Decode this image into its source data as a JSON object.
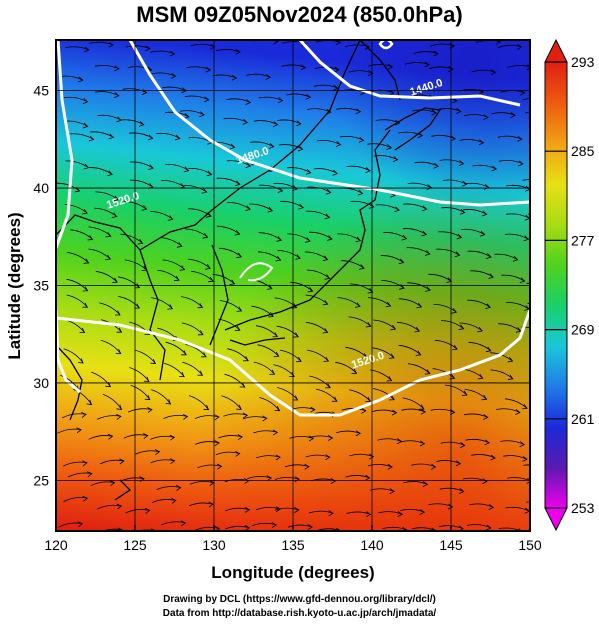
{
  "title": "MSM 09Z05Nov2024 (850.0hPa)",
  "xlabel": "Longitude (degrees)",
  "ylabel": "Latitude  (degrees)",
  "credit_line1": "Drawing by DCL (https://www.gfd-dennou.org/library/dcl/)",
  "credit_line2": "Data from http://database.rish.kyoto-u.ac.jp/arch/jmadata/",
  "chart_data": {
    "type": "heatmap",
    "variable": "temperature with streamlines and height contours",
    "x_ticks": [
      120,
      125,
      130,
      135,
      140,
      145,
      150
    ],
    "y_ticks": [
      25,
      30,
      35,
      40,
      45
    ],
    "xlim": [
      120,
      150
    ],
    "ylim": [
      22.4,
      47.6
    ],
    "grid": true,
    "colorbar": {
      "ticks": [
        253,
        261,
        269,
        277,
        285,
        293
      ],
      "range": [
        253,
        293
      ],
      "colors": [
        "#ee00ee",
        "#5a1ab0",
        "#1a2ad8",
        "#1f7ee8",
        "#19c8d8",
        "#19d068",
        "#4fd21e",
        "#a8dc14",
        "#e8e014",
        "#f0a014",
        "#ee5a10",
        "#e02010"
      ]
    },
    "contour_labels": [
      {
        "text": "1440.0",
        "lon": 143.5,
        "lat": 45.0
      },
      {
        "text": "1480.0",
        "lon": 132.5,
        "lat": 41.5
      },
      {
        "text": "1520.0",
        "lon": 124.3,
        "lat": 39.2
      },
      {
        "text": "1520.0",
        "lon": 139.8,
        "lat": 31.0
      }
    ]
  }
}
